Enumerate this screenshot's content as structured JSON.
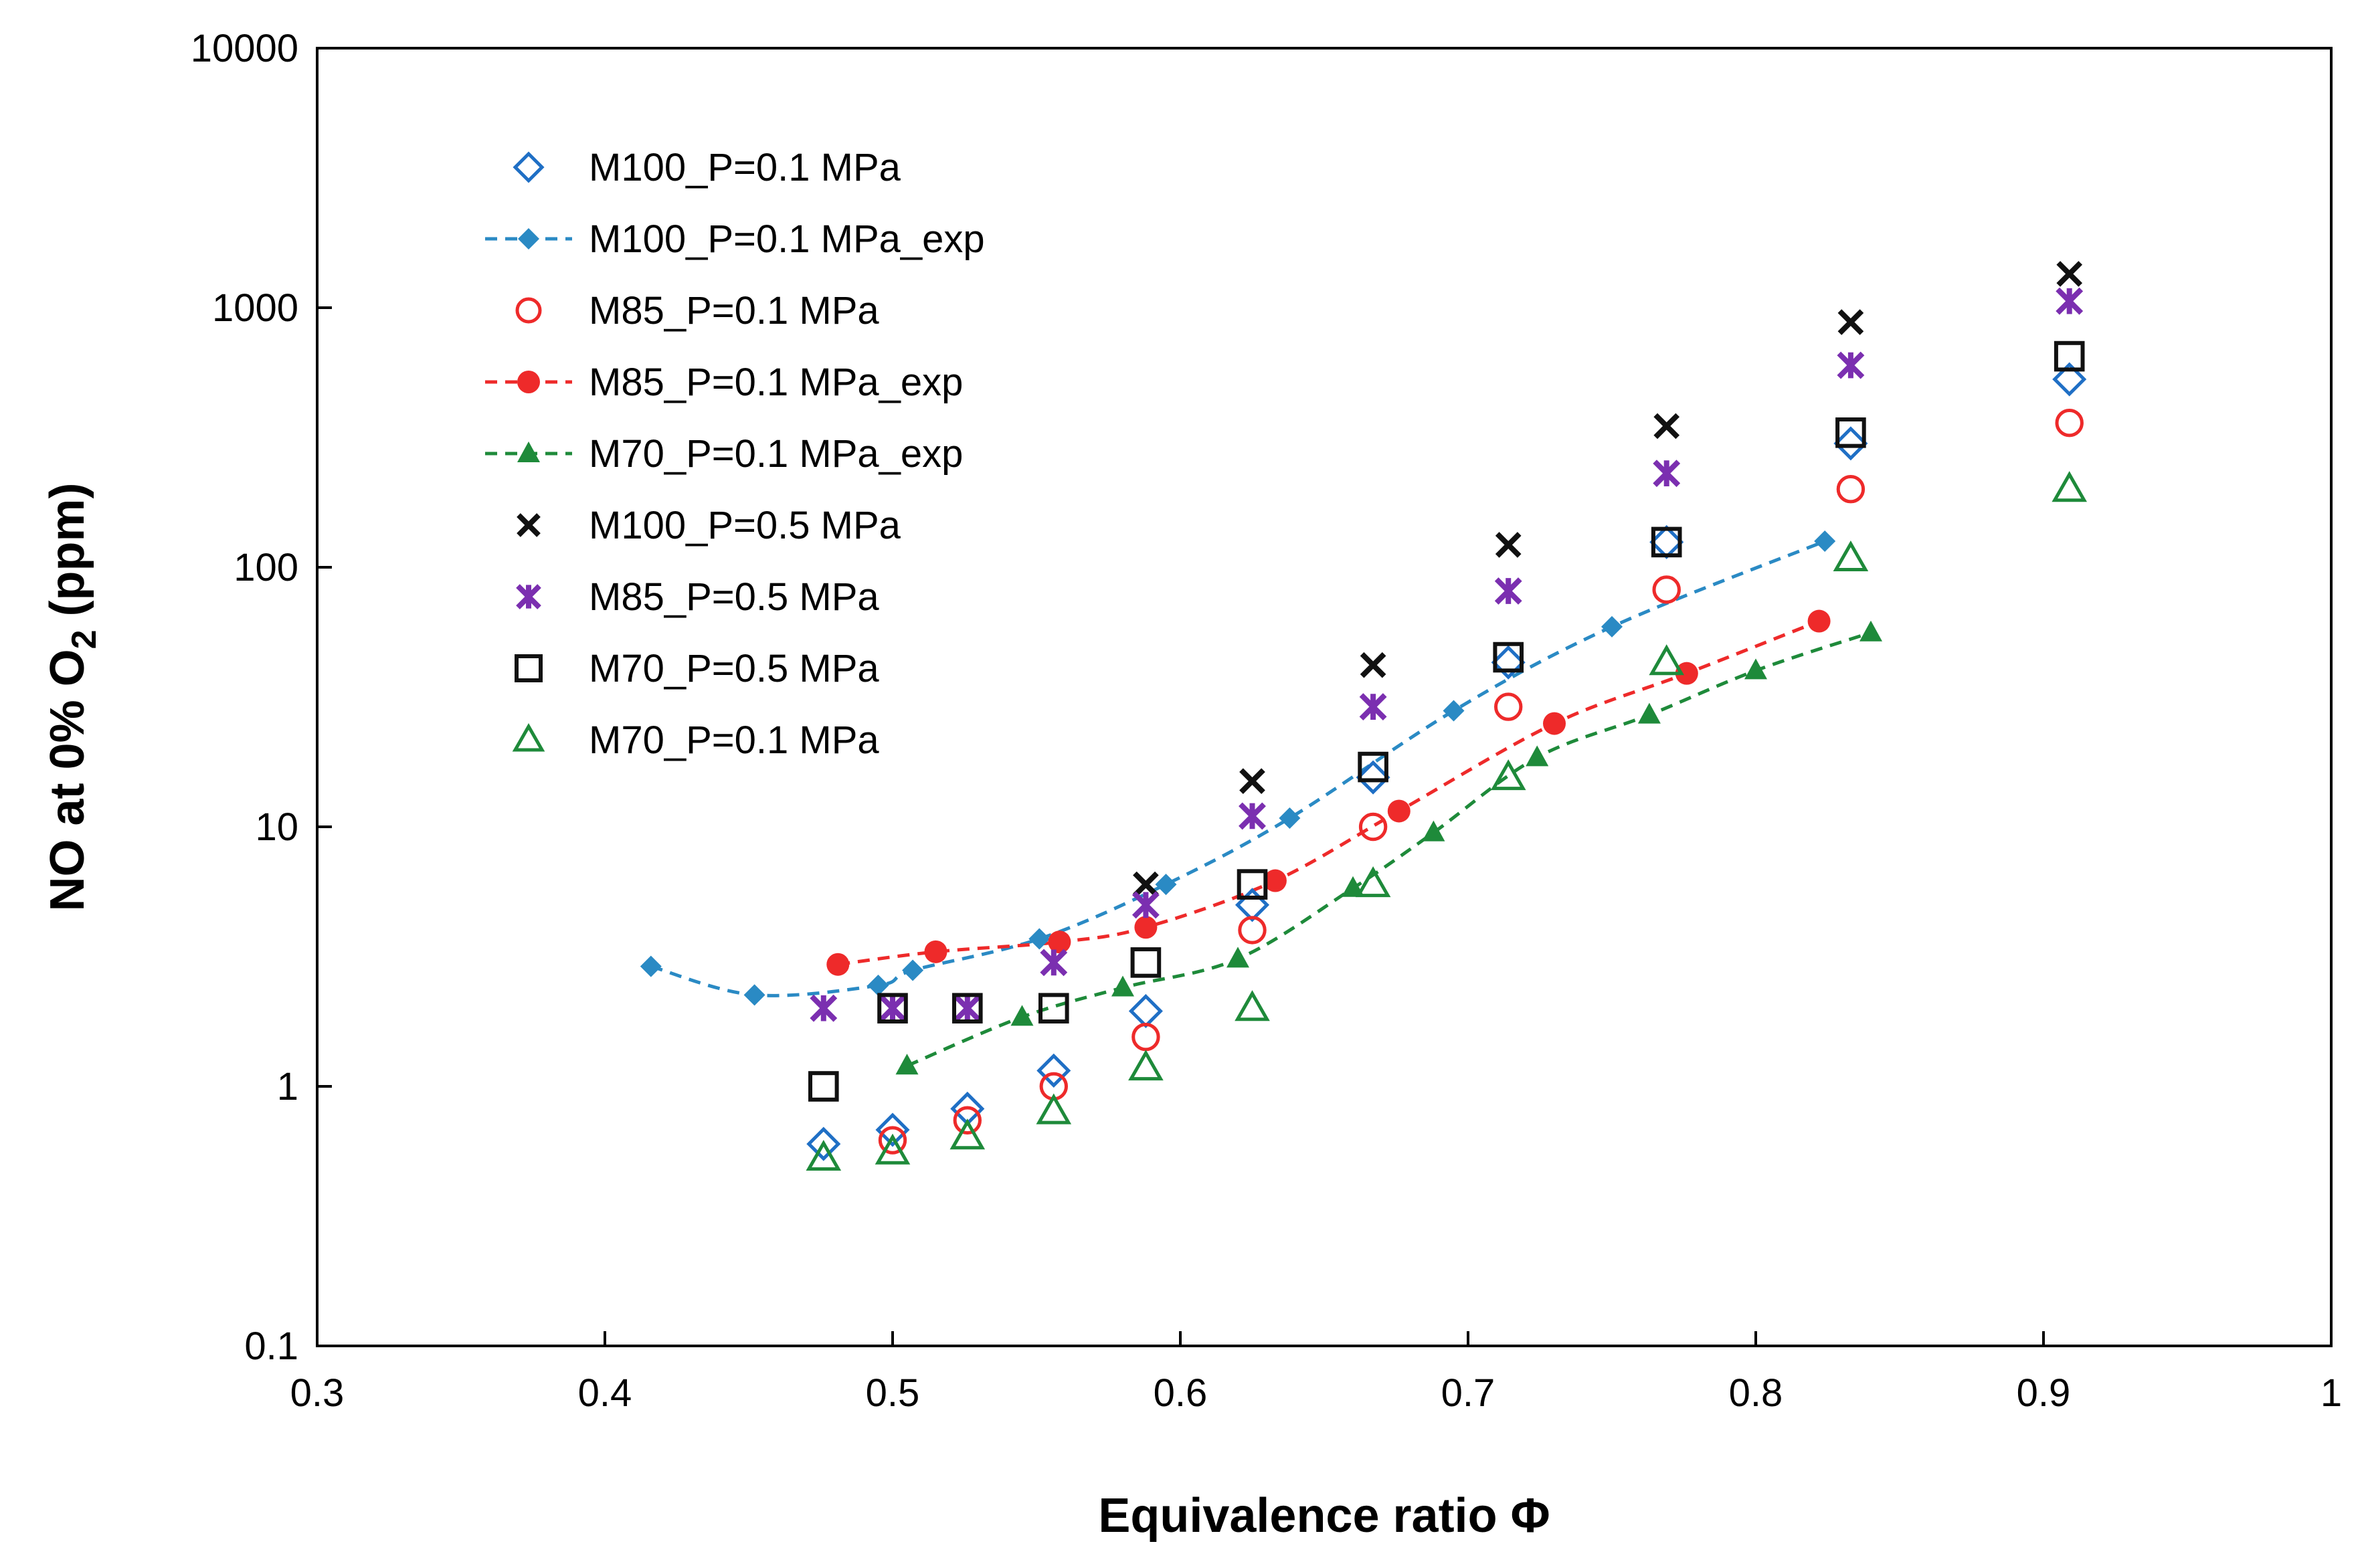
{
  "chart_data": {
    "type": "scatter",
    "title": "",
    "xlabel": "Equivalence ratio Φ",
    "ylabel": {
      "prefix": "NO at 0% O",
      "sub": "2",
      "suffix": " (ppm)"
    },
    "xscale": "linear",
    "yscale": "log",
    "xlim": [
      0.3,
      1.0
    ],
    "ylim": [
      0.1,
      10000
    ],
    "xticks": [
      0.3,
      0.4,
      0.5,
      0.6,
      0.7,
      0.8,
      0.9,
      1.0
    ],
    "xtick_labels": [
      "0.3",
      "0.4",
      "0.5",
      "0.6",
      "0.7",
      "0.8",
      "0.9",
      "1"
    ],
    "yticks": [
      0.1,
      1,
      10,
      100,
      1000,
      10000
    ],
    "ytick_labels": [
      "0.1",
      "1",
      "10",
      "100",
      "1000",
      "10000"
    ],
    "grid": false,
    "legend_position": "top-left",
    "series": [
      {
        "name": "M100_P=0.1 MPa",
        "marker": "diamond-open",
        "color": "#1f6fc5",
        "line": "none",
        "x": [
          0.476,
          0.5,
          0.526,
          0.556,
          0.588,
          0.625,
          0.667,
          0.714,
          0.769,
          0.833,
          0.909
        ],
        "y": [
          0.6,
          0.68,
          0.82,
          1.15,
          1.95,
          5.0,
          15.5,
          43,
          125,
          300,
          530
        ]
      },
      {
        "name": "M100_P=0.1 MPa_exp",
        "marker": "diamond-filled",
        "color": "#2a8ac4",
        "line": "dashed",
        "x": [
          0.416,
          0.452,
          0.495,
          0.507,
          0.551,
          0.595,
          0.638,
          0.695,
          0.75,
          0.824
        ],
        "y": [
          2.9,
          2.25,
          2.45,
          2.8,
          3.7,
          6.0,
          10.8,
          28,
          59,
          126
        ]
      },
      {
        "name": "M85_P=0.1 MPa",
        "marker": "circle-open",
        "color": "#ee2a2a",
        "line": "none",
        "x": [
          0.5,
          0.526,
          0.556,
          0.588,
          0.625,
          0.667,
          0.714,
          0.769,
          0.833,
          0.909
        ],
        "y": [
          0.62,
          0.74,
          1.0,
          1.55,
          4.0,
          10.0,
          29,
          82,
          200,
          360
        ]
      },
      {
        "name": "M85_P=0.1 MPa_exp",
        "marker": "circle-filled",
        "color": "#ee2a2a",
        "line": "dashed",
        "x": [
          0.481,
          0.515,
          0.558,
          0.588,
          0.633,
          0.676,
          0.73,
          0.776,
          0.822
        ],
        "y": [
          2.95,
          3.3,
          3.6,
          4.1,
          6.2,
          11.5,
          25,
          39,
          62
        ]
      },
      {
        "name": "M70_P=0.1 MPa_exp",
        "marker": "triangle-filled",
        "color": "#1e8a3a",
        "line": "dashed",
        "x": [
          0.505,
          0.545,
          0.58,
          0.62,
          0.66,
          0.688,
          0.724,
          0.763,
          0.8,
          0.84
        ],
        "y": [
          1.2,
          1.85,
          2.4,
          3.1,
          5.8,
          9.5,
          18.5,
          27,
          40,
          56
        ]
      },
      {
        "name": "M100_P=0.5 MPa",
        "marker": "x",
        "color": "#111111",
        "line": "none",
        "x": [
          0.588,
          0.625,
          0.667,
          0.714,
          0.769,
          0.833,
          0.909
        ],
        "y": [
          6.0,
          15.0,
          42,
          122,
          350,
          880,
          1350
        ]
      },
      {
        "name": "M85_P=0.5 MPa",
        "marker": "asterisk",
        "color": "#7b2fb0",
        "line": "none",
        "x": [
          0.476,
          0.5,
          0.526,
          0.556,
          0.588,
          0.625,
          0.667,
          0.714,
          0.769,
          0.833,
          0.909
        ],
        "y": [
          2.0,
          2.0,
          2.0,
          3.0,
          5.0,
          11.0,
          29,
          81,
          230,
          600,
          1060
        ]
      },
      {
        "name": "M70_P=0.5 MPa",
        "marker": "square-open",
        "color": "#111111",
        "line": "none",
        "x": [
          0.476,
          0.5,
          0.526,
          0.556,
          0.588,
          0.625,
          0.667,
          0.714,
          0.769,
          0.833,
          0.909
        ],
        "y": [
          1.0,
          2.0,
          2.0,
          2.0,
          3.0,
          6.0,
          17.0,
          45,
          125,
          330,
          650
        ]
      },
      {
        "name": "M70_P=0.1 MPa",
        "marker": "triangle-open",
        "color": "#1e8a3a",
        "line": "none",
        "x": [
          0.476,
          0.5,
          0.526,
          0.556,
          0.588,
          0.625,
          0.667,
          0.714,
          0.769,
          0.833,
          0.909
        ],
        "y": [
          0.53,
          0.56,
          0.64,
          0.8,
          1.18,
          2.0,
          6.0,
          15.5,
          43,
          108,
          200
        ]
      }
    ]
  }
}
